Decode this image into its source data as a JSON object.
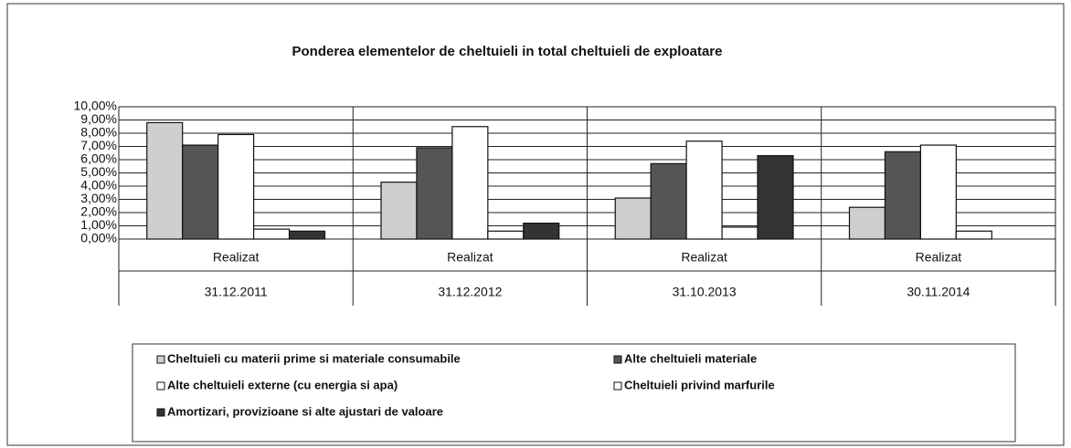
{
  "chart_data": {
    "type": "bar",
    "title": "Ponderea elementelor de cheltuieli in total cheltuieli de exploatare",
    "categories": [
      [
        "Realizat",
        "31.12.2011"
      ],
      [
        "Realizat",
        "31.12.2012"
      ],
      [
        "Realizat",
        "31.10.2013"
      ],
      [
        "Realizat",
        "30.11.2014"
      ]
    ],
    "series": [
      {
        "name": "Cheltuieli cu materii prime si materiale consumabile",
        "color": "#cfcfcf",
        "values": [
          8.8,
          4.3,
          3.1,
          2.4
        ]
      },
      {
        "name": "Alte cheltuieli materiale",
        "color": "#555555",
        "values": [
          7.1,
          6.9,
          5.7,
          6.6
        ]
      },
      {
        "name": "Alte cheltuieli externe (cu energia si apa)",
        "color": "#ffffff",
        "values": [
          7.9,
          8.5,
          7.4,
          7.1
        ]
      },
      {
        "name": "Cheltuieli privind marfurile",
        "color": "#ffffff",
        "values": [
          0.75,
          0.6,
          0.9,
          0.6
        ]
      },
      {
        "name": "Amortizari, provizioane si alte ajustari de valoare",
        "color": "#333333",
        "values": [
          0.6,
          1.2,
          6.3,
          0
        ]
      }
    ],
    "ylim": [
      0,
      10
    ],
    "yticks": [
      {
        "value": 0,
        "label": "0,00%"
      },
      {
        "value": 1,
        "label": "1,00%"
      },
      {
        "value": 2,
        "label": "2,00%"
      },
      {
        "value": 3,
        "label": "3,00%"
      },
      {
        "value": 4,
        "label": "4,00%"
      },
      {
        "value": 5,
        "label": "5,00%"
      },
      {
        "value": 6,
        "label": "6,00%"
      },
      {
        "value": 7,
        "label": "7,00%"
      },
      {
        "value": 8,
        "label": "8,00%"
      },
      {
        "value": 9,
        "label": "9,00%"
      },
      {
        "value": 10,
        "label": "10,00%"
      }
    ],
    "grid": true,
    "legend": "bottom"
  }
}
